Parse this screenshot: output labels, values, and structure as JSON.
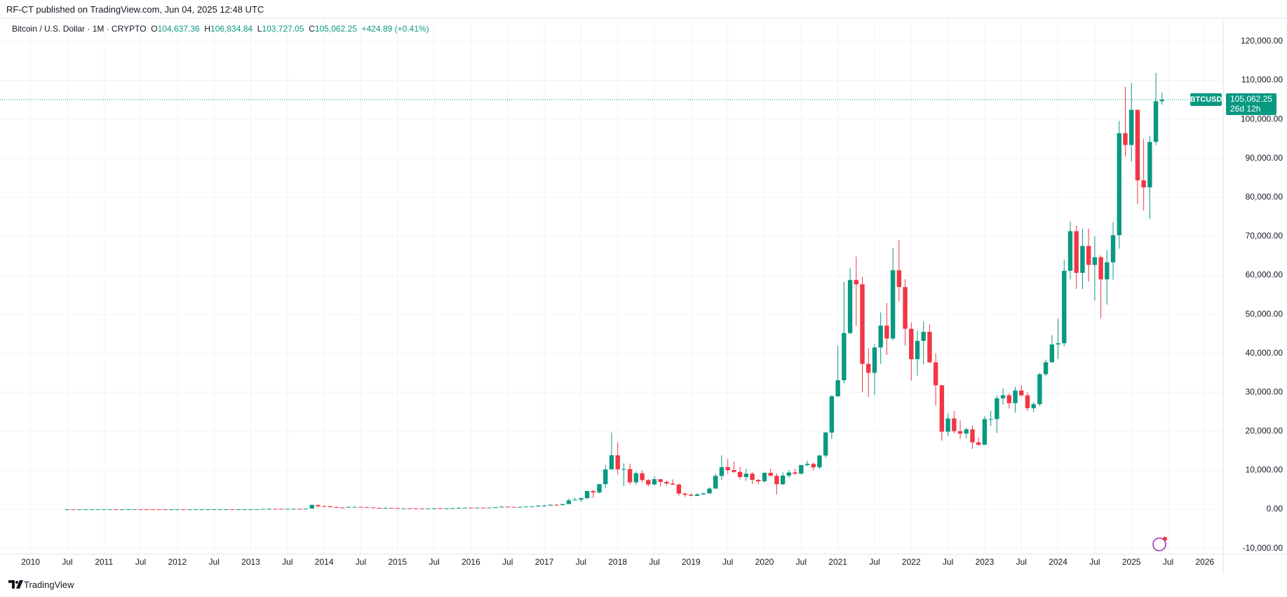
{
  "header": {
    "published": "RF-CT published on TradingView.com, Jun 04, 2025 12:48 UTC",
    "symbol": "Bitcoin / U.S. Dollar · 1M · CRYPTO",
    "o": "O",
    "open": "104,637.36",
    "h": "H",
    "high": "106,834.84",
    "l": "L",
    "low": "103,727.05",
    "c": "C",
    "close": "105,062.25",
    "change": "+424.89 (+0.41%)"
  },
  "price_tag": {
    "value": "105,062.25",
    "countdown": "26d 12h"
  },
  "footer": "TradingView",
  "chart_data": {
    "type": "candlestick",
    "up_color": "#089981",
    "down_color": "#f23645",
    "grid": true,
    "xlim": [
      "2009-08",
      "2026-04"
    ],
    "ylim": [
      -11500,
      122500
    ],
    "yticks": [
      {
        "value": -10000,
        "label": "-10,000.00"
      },
      {
        "value": 0,
        "label": "0.00"
      },
      {
        "value": 10000,
        "label": "10,000.00"
      },
      {
        "value": 20000,
        "label": "20,000.00"
      },
      {
        "value": 30000,
        "label": "30,000.00"
      },
      {
        "value": 40000,
        "label": "40,000.00"
      },
      {
        "value": 50000,
        "label": "50,000.00"
      },
      {
        "value": 60000,
        "label": "60,000.00"
      },
      {
        "value": 70000,
        "label": "70,000.00"
      },
      {
        "value": 80000,
        "label": "80,000.00"
      },
      {
        "value": 90000,
        "label": "90,000.00"
      },
      {
        "value": 100000,
        "label": "100,000.00"
      },
      {
        "value": 110000,
        "label": "110,000.00"
      },
      {
        "value": 120000,
        "label": "120,000.00"
      }
    ],
    "xticks": [
      {
        "value": "2010-01",
        "label": "2010"
      },
      {
        "value": "2010-07",
        "label": "Jul"
      },
      {
        "value": "2011-01",
        "label": "2011"
      },
      {
        "value": "2011-07",
        "label": "Jul"
      },
      {
        "value": "2012-01",
        "label": "2012"
      },
      {
        "value": "2012-07",
        "label": "Jul"
      },
      {
        "value": "2013-01",
        "label": "2013"
      },
      {
        "value": "2013-07",
        "label": "Jul"
      },
      {
        "value": "2014-01",
        "label": "2014"
      },
      {
        "value": "2014-07",
        "label": "Jul"
      },
      {
        "value": "2015-01",
        "label": "2015"
      },
      {
        "value": "2015-07",
        "label": "Jul"
      },
      {
        "value": "2016-01",
        "label": "2016"
      },
      {
        "value": "2016-07",
        "label": "Jul"
      },
      {
        "value": "2017-01",
        "label": "2017"
      },
      {
        "value": "2017-07",
        "label": "Jul"
      },
      {
        "value": "2018-01",
        "label": "2018"
      },
      {
        "value": "2018-07",
        "label": "Jul"
      },
      {
        "value": "2019-01",
        "label": "2019"
      },
      {
        "value": "2019-07",
        "label": "Jul"
      },
      {
        "value": "2020-01",
        "label": "2020"
      },
      {
        "value": "2020-07",
        "label": "Jul"
      },
      {
        "value": "2021-01",
        "label": "2021"
      },
      {
        "value": "2021-07",
        "label": "Jul"
      },
      {
        "value": "2022-01",
        "label": "2022"
      },
      {
        "value": "2022-07",
        "label": "Jul"
      },
      {
        "value": "2023-01",
        "label": "2023"
      },
      {
        "value": "2023-07",
        "label": "Jul"
      },
      {
        "value": "2024-01",
        "label": "2024"
      },
      {
        "value": "2024-07",
        "label": "Jul"
      },
      {
        "value": "2025-01",
        "label": "2025"
      },
      {
        "value": "2025-07",
        "label": "Jul"
      },
      {
        "value": "2026-01",
        "label": "2026"
      }
    ],
    "series": [
      {
        "name": "BTCUSD",
        "x": [
          "2010-07",
          "2010-08",
          "2010-09",
          "2010-10",
          "2010-11",
          "2010-12",
          "2011-01",
          "2011-02",
          "2011-03",
          "2011-04",
          "2011-05",
          "2011-06",
          "2011-07",
          "2011-08",
          "2011-09",
          "2011-10",
          "2011-11",
          "2011-12",
          "2012-01",
          "2012-02",
          "2012-03",
          "2012-04",
          "2012-05",
          "2012-06",
          "2012-07",
          "2012-08",
          "2012-09",
          "2012-10",
          "2012-11",
          "2012-12",
          "2013-01",
          "2013-02",
          "2013-03",
          "2013-04",
          "2013-05",
          "2013-06",
          "2013-07",
          "2013-08",
          "2013-09",
          "2013-10",
          "2013-11",
          "2013-12",
          "2014-01",
          "2014-02",
          "2014-03",
          "2014-04",
          "2014-05",
          "2014-06",
          "2014-07",
          "2014-08",
          "2014-09",
          "2014-10",
          "2014-11",
          "2014-12",
          "2015-01",
          "2015-02",
          "2015-03",
          "2015-04",
          "2015-05",
          "2015-06",
          "2015-07",
          "2015-08",
          "2015-09",
          "2015-10",
          "2015-11",
          "2015-12",
          "2016-01",
          "2016-02",
          "2016-03",
          "2016-04",
          "2016-05",
          "2016-06",
          "2016-07",
          "2016-08",
          "2016-09",
          "2016-10",
          "2016-11",
          "2016-12",
          "2017-01",
          "2017-02",
          "2017-03",
          "2017-04",
          "2017-05",
          "2017-06",
          "2017-07",
          "2017-08",
          "2017-09",
          "2017-10",
          "2017-11",
          "2017-12",
          "2018-01",
          "2018-02",
          "2018-03",
          "2018-04",
          "2018-05",
          "2018-06",
          "2018-07",
          "2018-08",
          "2018-09",
          "2018-10",
          "2018-11",
          "2018-12",
          "2019-01",
          "2019-02",
          "2019-03",
          "2019-04",
          "2019-05",
          "2019-06",
          "2019-07",
          "2019-08",
          "2019-09",
          "2019-10",
          "2019-11",
          "2019-12",
          "2020-01",
          "2020-02",
          "2020-03",
          "2020-04",
          "2020-05",
          "2020-06",
          "2020-07",
          "2020-08",
          "2020-09",
          "2020-10",
          "2020-11",
          "2020-12",
          "2021-01",
          "2021-02",
          "2021-03",
          "2021-04",
          "2021-05",
          "2021-06",
          "2021-07",
          "2021-08",
          "2021-09",
          "2021-10",
          "2021-11",
          "2021-12",
          "2022-01",
          "2022-02",
          "2022-03",
          "2022-04",
          "2022-05",
          "2022-06",
          "2022-07",
          "2022-08",
          "2022-09",
          "2022-10",
          "2022-11",
          "2022-12",
          "2023-01",
          "2023-02",
          "2023-03",
          "2023-04",
          "2023-05",
          "2023-06",
          "2023-07",
          "2023-08",
          "2023-09",
          "2023-10",
          "2023-11",
          "2023-12",
          "2024-01",
          "2024-02",
          "2024-03",
          "2024-04",
          "2024-05",
          "2024-06",
          "2024-07",
          "2024-08",
          "2024-09",
          "2024-10",
          "2024-11",
          "2024-12",
          "2025-01",
          "2025-02",
          "2025-03",
          "2025-04",
          "2025-05",
          "2025-06"
        ],
        "open": [
          0.05,
          0.07,
          0.06,
          0.06,
          0.19,
          0.21,
          0.3,
          0.53,
          0.86,
          0.78,
          3.5,
          8.7,
          16.1,
          13.4,
          8.2,
          5.1,
          3.2,
          3,
          4.7,
          5.5,
          4.9,
          4.9,
          5,
          5.2,
          6.7,
          9.3,
          10.2,
          12.4,
          11.2,
          12.6,
          13.5,
          20,
          33,
          93,
          139,
          129,
          97,
          106,
          135,
          133,
          211,
          1130,
          806,
          800,
          573,
          457,
          447,
          630,
          640,
          586,
          478,
          386,
          338,
          378,
          320,
          217,
          254,
          244,
          236,
          230,
          263,
          284,
          230,
          236,
          314,
          377,
          430,
          368,
          437,
          416,
          448,
          531,
          673,
          624,
          575,
          609,
          700,
          742,
          964,
          970,
          1190,
          1080,
          1350,
          2300,
          2480,
          2875,
          4700,
          4340,
          6470,
          10230,
          13860,
          10260,
          10330,
          6930,
          9240,
          7500,
          6390,
          7730,
          7030,
          6630,
          6370,
          4040,
          3740,
          3460,
          3850,
          4100,
          5320,
          8570,
          10820,
          10080,
          9600,
          8290,
          9150,
          7560,
          7190,
          9350,
          8600,
          6440,
          8660,
          9460,
          9140,
          11350,
          11650,
          10780,
          13800,
          19700,
          28990,
          33100,
          45200,
          58800,
          57700,
          37300,
          35000,
          41500,
          47100,
          43800,
          61300,
          57000,
          46300,
          38500,
          43200,
          45500,
          37700,
          31800,
          19900,
          23300,
          20050,
          19430,
          20500,
          17170,
          16550,
          23130,
          23150,
          28480,
          29250,
          27220,
          30470,
          29230,
          25940,
          26970,
          34650,
          37720,
          42280,
          42580,
          61170,
          71330,
          60640,
          67530,
          62680,
          64630,
          58970,
          63330,
          70290,
          96450,
          93430,
          102430,
          84350,
          82550,
          94210,
          104637.36
        ],
        "high": [
          0.09,
          0.07,
          0.07,
          0.2,
          0.5,
          0.3,
          0.55,
          1.1,
          0.95,
          4,
          9,
          32,
          16,
          14,
          8,
          5,
          3.5,
          5,
          7,
          6.5,
          5.4,
          5.5,
          5.2,
          6.8,
          9.8,
          16,
          12.5,
          12.9,
          13,
          13.9,
          20.5,
          33,
          95,
          266,
          140,
          130,
          111,
          136,
          147,
          213,
          1242,
          1160,
          1020,
          900,
          700,
          570,
          630,
          680,
          650,
          600,
          500,
          415,
          460,
          380,
          320,
          266,
          300,
          300,
          250,
          270,
          320,
          285,
          260,
          330,
          500,
          470,
          460,
          450,
          440,
          465,
          540,
          780,
          700,
          630,
          620,
          730,
          760,
          980,
          1200,
          1220,
          1300,
          1370,
          2790,
          3000,
          2950,
          4750,
          5000,
          6470,
          11400,
          19700,
          17200,
          11800,
          11700,
          9750,
          10000,
          7800,
          8500,
          7800,
          7400,
          7700,
          6600,
          4250,
          4100,
          4200,
          4200,
          5640,
          9100,
          13900,
          12900,
          12300,
          10900,
          10400,
          9500,
          7750,
          9600,
          10500,
          9200,
          9500,
          10100,
          10400,
          11400,
          12500,
          12000,
          14000,
          19900,
          29300,
          41900,
          58300,
          61800,
          64800,
          59600,
          41300,
          42400,
          50500,
          52900,
          67000,
          69000,
          59000,
          47900,
          45800,
          48200,
          47400,
          40000,
          31900,
          24700,
          25200,
          22800,
          20900,
          21500,
          18400,
          23900,
          25250,
          29200,
          31000,
          29800,
          31400,
          31800,
          30000,
          27500,
          35000,
          38400,
          44700,
          48900,
          64000,
          73800,
          72700,
          71900,
          72000,
          70000,
          65100,
          66500,
          73600,
          99600,
          108300,
          109300,
          102500,
          95000,
          95700,
          111900,
          106834.84
        ],
        "low": [
          0.05,
          0.05,
          0.06,
          0.06,
          0.14,
          0.18,
          0.24,
          0.52,
          0.7,
          0.7,
          3,
          8,
          12,
          7,
          4.3,
          2,
          2,
          2.8,
          4.6,
          4.3,
          4.3,
          4.8,
          4.9,
          5.2,
          6.3,
          7,
          10.3,
          10,
          10.5,
          12.2,
          13,
          19,
          33,
          50,
          79,
          88,
          65,
          100,
          120,
          120,
          204,
          520,
          740,
          510,
          440,
          340,
          420,
          550,
          560,
          430,
          370,
          280,
          320,
          310,
          160,
          210,
          240,
          220,
          230,
          220,
          260,
          200,
          220,
          240,
          320,
          340,
          360,
          370,
          400,
          410,
          430,
          530,
          570,
          530,
          590,
          600,
          700,
          740,
          750,
          920,
          900,
          1050,
          1320,
          2250,
          1850,
          2600,
          2900,
          4100,
          5500,
          10800,
          9000,
          6000,
          6400,
          6400,
          7000,
          5800,
          6100,
          5900,
          6100,
          6200,
          3500,
          3200,
          3350,
          3400,
          3700,
          4100,
          5300,
          7500,
          9100,
          9300,
          7700,
          7300,
          6500,
          6400,
          6900,
          8500,
          3800,
          6200,
          8100,
          8900,
          9000,
          11000,
          10000,
          10400,
          13200,
          18000,
          28800,
          32300,
          44900,
          47000,
          30000,
          28800,
          29300,
          37300,
          39600,
          43300,
          53300,
          42000,
          33000,
          34300,
          37200,
          37500,
          26600,
          17600,
          18800,
          19500,
          18100,
          18200,
          15500,
          16300,
          16500,
          21400,
          19600,
          26900,
          25800,
          24800,
          28900,
          25200,
          24900,
          26500,
          34100,
          37600,
          38500,
          41800,
          59000,
          56500,
          56500,
          58400,
          53500,
          49000,
          52500,
          58900,
          66800,
          90500,
          89200,
          78200,
          76600,
          74400,
          93400,
          103727.05
        ],
        "close": [
          0.07,
          0.06,
          0.06,
          0.19,
          0.21,
          0.3,
          0.53,
          0.86,
          0.78,
          3.5,
          8.7,
          16.1,
          13.4,
          8.2,
          5.1,
          3.2,
          3,
          4.7,
          5.5,
          4.9,
          4.9,
          5,
          5.2,
          6.7,
          9.3,
          10.2,
          12.4,
          11.2,
          12.6,
          13.5,
          20,
          33,
          93,
          139,
          129,
          97,
          106,
          135,
          133,
          211,
          1130,
          806,
          800,
          573,
          457,
          447,
          630,
          640,
          586,
          478,
          386,
          338,
          378,
          320,
          217,
          254,
          244,
          236,
          230,
          263,
          284,
          230,
          236,
          314,
          377,
          430,
          368,
          437,
          416,
          448,
          531,
          673,
          624,
          575,
          609,
          700,
          742,
          964,
          970,
          1190,
          1080,
          1350,
          2300,
          2480,
          2875,
          4700,
          4340,
          6470,
          10230,
          13860,
          10260,
          10330,
          6930,
          9240,
          7500,
          6390,
          7730,
          7030,
          6630,
          6370,
          4040,
          3740,
          3460,
          3850,
          4100,
          5320,
          8570,
          10820,
          10080,
          9600,
          8290,
          9150,
          7560,
          7190,
          9350,
          8600,
          6440,
          8660,
          9460,
          9140,
          11350,
          11650,
          10780,
          13800,
          19700,
          28990,
          33100,
          45200,
          58800,
          57700,
          37300,
          35000,
          41500,
          47100,
          43800,
          61300,
          57000,
          46300,
          38500,
          43200,
          45500,
          37700,
          31800,
          19900,
          23300,
          20050,
          19430,
          20500,
          17170,
          16550,
          23130,
          23150,
          28480,
          29250,
          27220,
          30470,
          29230,
          25940,
          26970,
          34650,
          37720,
          42280,
          42580,
          61170,
          71330,
          60640,
          67530,
          62680,
          64630,
          58970,
          63330,
          70290,
          96450,
          93430,
          102430,
          84350,
          82550,
          94210,
          104637.36,
          105062.25
        ]
      }
    ]
  }
}
